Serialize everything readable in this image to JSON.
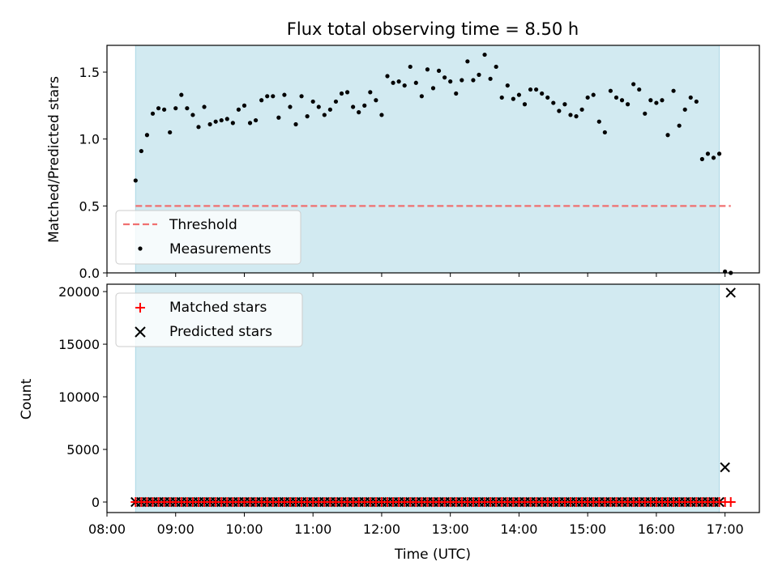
{
  "chart_data": [
    {
      "panel": "top",
      "type": "scatter",
      "title": "Flux total observing time = 8.50 h",
      "ylabel": "Matched/Predicted stars",
      "xlabel": "",
      "xlim": [
        "08:00",
        "17:30"
      ],
      "ylim": [
        0,
        1.7
      ],
      "yticks": [
        "0.0",
        "0.5",
        "1.0",
        "1.5"
      ],
      "shaded_span": [
        "08:25",
        "16:55"
      ],
      "legend_position": "lower-left",
      "series": [
        {
          "name": "Threshold",
          "kind": "dashed-line",
          "color": "#f07070",
          "x": [
            "08:25",
            "17:05"
          ],
          "y": [
            0.5,
            0.5
          ]
        },
        {
          "name": "Measurements",
          "kind": "scatter",
          "color": "#000000",
          "points": [
            [
              "08:25",
              0.69
            ],
            [
              "08:30",
              0.91
            ],
            [
              "08:35",
              1.03
            ],
            [
              "08:40",
              1.19
            ],
            [
              "08:45",
              1.23
            ],
            [
              "08:50",
              1.22
            ],
            [
              "08:55",
              1.05
            ],
            [
              "09:00",
              1.23
            ],
            [
              "09:05",
              1.33
            ],
            [
              "09:10",
              1.23
            ],
            [
              "09:15",
              1.18
            ],
            [
              "09:20",
              1.09
            ],
            [
              "09:25",
              1.24
            ],
            [
              "09:30",
              1.11
            ],
            [
              "09:35",
              1.13
            ],
            [
              "09:40",
              1.14
            ],
            [
              "09:45",
              1.15
            ],
            [
              "09:50",
              1.12
            ],
            [
              "09:55",
              1.22
            ],
            [
              "10:00",
              1.25
            ],
            [
              "10:05",
              1.12
            ],
            [
              "10:10",
              1.14
            ],
            [
              "10:15",
              1.29
            ],
            [
              "10:20",
              1.32
            ],
            [
              "10:25",
              1.32
            ],
            [
              "10:30",
              1.16
            ],
            [
              "10:35",
              1.33
            ],
            [
              "10:40",
              1.24
            ],
            [
              "10:45",
              1.11
            ],
            [
              "10:50",
              1.32
            ],
            [
              "10:55",
              1.17
            ],
            [
              "11:00",
              1.28
            ],
            [
              "11:05",
              1.24
            ],
            [
              "11:10",
              1.18
            ],
            [
              "11:15",
              1.22
            ],
            [
              "11:20",
              1.28
            ],
            [
              "11:25",
              1.34
            ],
            [
              "11:30",
              1.35
            ],
            [
              "11:35",
              1.24
            ],
            [
              "11:40",
              1.2
            ],
            [
              "11:45",
              1.25
            ],
            [
              "11:50",
              1.35
            ],
            [
              "11:55",
              1.29
            ],
            [
              "12:00",
              1.18
            ],
            [
              "12:05",
              1.47
            ],
            [
              "12:10",
              1.42
            ],
            [
              "12:15",
              1.43
            ],
            [
              "12:20",
              1.4
            ],
            [
              "12:25",
              1.54
            ],
            [
              "12:30",
              1.42
            ],
            [
              "12:35",
              1.32
            ],
            [
              "12:40",
              1.52
            ],
            [
              "12:45",
              1.38
            ],
            [
              "12:50",
              1.51
            ],
            [
              "12:55",
              1.46
            ],
            [
              "13:00",
              1.43
            ],
            [
              "13:05",
              1.34
            ],
            [
              "13:10",
              1.44
            ],
            [
              "13:15",
              1.58
            ],
            [
              "13:20",
              1.44
            ],
            [
              "13:25",
              1.48
            ],
            [
              "13:30",
              1.63
            ],
            [
              "13:35",
              1.45
            ],
            [
              "13:40",
              1.54
            ],
            [
              "13:45",
              1.31
            ],
            [
              "13:50",
              1.4
            ],
            [
              "13:55",
              1.3
            ],
            [
              "14:00",
              1.33
            ],
            [
              "14:05",
              1.26
            ],
            [
              "14:10",
              1.37
            ],
            [
              "14:15",
              1.37
            ],
            [
              "14:20",
              1.34
            ],
            [
              "14:25",
              1.31
            ],
            [
              "14:30",
              1.27
            ],
            [
              "14:35",
              1.21
            ],
            [
              "14:40",
              1.26
            ],
            [
              "14:45",
              1.18
            ],
            [
              "14:50",
              1.17
            ],
            [
              "14:55",
              1.22
            ],
            [
              "15:00",
              1.31
            ],
            [
              "15:05",
              1.33
            ],
            [
              "15:10",
              1.13
            ],
            [
              "15:15",
              1.05
            ],
            [
              "15:20",
              1.36
            ],
            [
              "15:25",
              1.31
            ],
            [
              "15:30",
              1.29
            ],
            [
              "15:35",
              1.26
            ],
            [
              "15:40",
              1.41
            ],
            [
              "15:45",
              1.37
            ],
            [
              "15:50",
              1.19
            ],
            [
              "15:55",
              1.29
            ],
            [
              "16:00",
              1.27
            ],
            [
              "16:05",
              1.29
            ],
            [
              "16:10",
              1.03
            ],
            [
              "16:15",
              1.36
            ],
            [
              "16:20",
              1.1
            ],
            [
              "16:25",
              1.22
            ],
            [
              "16:30",
              1.31
            ],
            [
              "16:35",
              1.28
            ],
            [
              "16:40",
              0.85
            ],
            [
              "16:45",
              0.89
            ],
            [
              "16:50",
              0.86
            ],
            [
              "16:55",
              0.89
            ],
            [
              "17:00",
              0.01
            ],
            [
              "17:05",
              0.0
            ]
          ]
        }
      ]
    },
    {
      "panel": "bottom",
      "type": "scatter",
      "title": "",
      "ylabel": "Count",
      "xlabel": "Time (UTC)",
      "xlim": [
        "08:00",
        "17:30"
      ],
      "ylim": [
        -1000,
        20700
      ],
      "xticks": [
        "08:00",
        "09:00",
        "10:00",
        "11:00",
        "12:00",
        "13:00",
        "14:00",
        "15:00",
        "16:00",
        "17:00"
      ],
      "yticks": [
        "0",
        "5000",
        "10000",
        "15000",
        "20000"
      ],
      "shaded_span": [
        "08:25",
        "16:55"
      ],
      "legend_position": "upper-left",
      "series": [
        {
          "name": "Matched stars",
          "marker": "+",
          "color": "#ff0000",
          "x_range": [
            "08:25",
            "17:05"
          ],
          "y": 0
        },
        {
          "name": "Predicted stars",
          "marker": "x",
          "color": "#000000",
          "x_range": [
            "08:25",
            "16:55"
          ],
          "y": 0,
          "extra_points": [
            [
              "17:00",
              3300
            ],
            [
              "17:05",
              19900
            ]
          ]
        }
      ]
    }
  ],
  "colors": {
    "shade": "#add8e6",
    "threshold": "#f07070",
    "matched": "#ff0000",
    "predicted": "#000000"
  }
}
